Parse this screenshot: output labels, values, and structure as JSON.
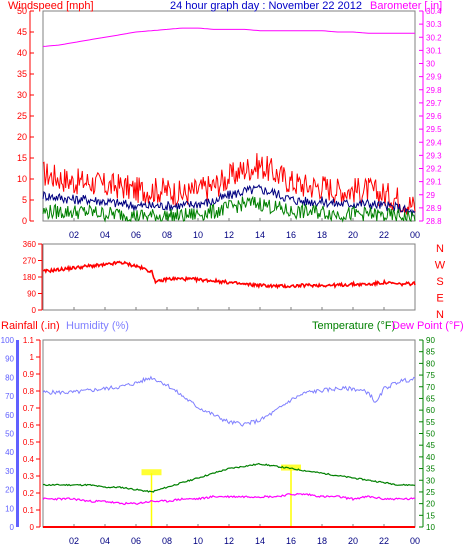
{
  "header": {
    "title": "24 hour graph day : November 22 2012",
    "windspeed_label": "Windspeed [mph]",
    "barometer_label": "Barometer [.in]",
    "rainfall_label": "Rainfall (.in)",
    "humidity_label": "Humidity (%)",
    "temperature_label": "Temperature (°F)",
    "dewpoint_label": "Dew Point (°F)"
  },
  "colors": {
    "wind": "#ff0000",
    "wind_avg": "#000080",
    "wind_low": "#008000",
    "barometer": "#ff00ff",
    "title": "#0000c8",
    "direction": "#ff0000",
    "rain": "#ff0000",
    "humidity": "#8080ff",
    "humidity_axis": "#6060ff",
    "temperature": "#008000",
    "dewpoint": "#ff00ff",
    "solar": "#ffff00"
  },
  "chart_data": [
    {
      "type": "line",
      "x_ticks": [
        "02",
        "04",
        "06",
        "08",
        "10",
        "12",
        "14",
        "16",
        "18",
        "20",
        "22",
        "00"
      ],
      "left_axis": {
        "ylim": [
          0,
          50
        ],
        "ticks": [
          0,
          5,
          10,
          15,
          20,
          25,
          30,
          35,
          40,
          45,
          50
        ]
      },
      "right_axis": {
        "ylim": [
          28.8,
          30.4
        ],
        "ticks": [
          "28.8",
          "28.9",
          "29",
          "29.1",
          "29.2",
          "29.3",
          "29.4",
          "29.5",
          "29.6",
          "29.7",
          "29.8",
          "29.9",
          "30",
          "30.1",
          "30.2",
          "30.3",
          "30.4"
        ]
      },
      "series": [
        {
          "name": "Windspeed [mph]",
          "axis": "left",
          "hours": [
            0,
            1,
            2,
            3,
            4,
            5,
            6,
            7,
            8,
            9,
            10,
            11,
            12,
            13,
            14,
            15,
            16,
            17,
            18,
            19,
            20,
            21,
            22,
            23,
            24
          ],
          "values": [
            11,
            10,
            9,
            9,
            8,
            8,
            7,
            7,
            7,
            6,
            7,
            8,
            10,
            12,
            13,
            11,
            9,
            8,
            8,
            7,
            7,
            7,
            6,
            5,
            3
          ]
        },
        {
          "name": "",
          "axis": "left",
          "hours": [
            0,
            1,
            2,
            3,
            4,
            5,
            6,
            7,
            8,
            9,
            10,
            11,
            12,
            13,
            14,
            15,
            16,
            17,
            18,
            19,
            20,
            21,
            22,
            23,
            24
          ],
          "values": [
            6,
            5.5,
            5,
            5,
            4.5,
            4,
            3.5,
            3.5,
            3.5,
            3.5,
            4,
            4.5,
            6,
            7,
            7.5,
            6.5,
            5,
            4.5,
            4.5,
            4,
            4,
            4,
            3.5,
            3,
            1.5
          ]
        },
        {
          "name": "",
          "axis": "left",
          "hours": [
            0,
            1,
            2,
            3,
            4,
            5,
            6,
            7,
            8,
            9,
            10,
            11,
            12,
            13,
            14,
            15,
            16,
            17,
            18,
            19,
            20,
            21,
            22,
            23,
            24
          ],
          "values": [
            2,
            2,
            2,
            2,
            1.5,
            1.5,
            1,
            1,
            1,
            1,
            1.5,
            2,
            3,
            4,
            4,
            3,
            2,
            2,
            2,
            1.5,
            1.5,
            1.5,
            1,
            1,
            0.5
          ]
        },
        {
          "name": "Barometer [.in]",
          "axis": "right",
          "hours": [
            0,
            1,
            2,
            3,
            4,
            5,
            6,
            7,
            8,
            9,
            10,
            11,
            12,
            13,
            14,
            15,
            16,
            17,
            18,
            19,
            20,
            21,
            22,
            23,
            24
          ],
          "values": [
            30.13,
            30.14,
            30.16,
            30.18,
            30.2,
            30.22,
            30.24,
            30.25,
            30.26,
            30.27,
            30.27,
            30.26,
            30.26,
            30.26,
            30.25,
            30.25,
            30.25,
            30.25,
            30.25,
            30.24,
            30.24,
            30.23,
            30.23,
            30.23,
            30.23
          ]
        }
      ]
    },
    {
      "type": "line",
      "x_ticks": [],
      "left_axis": {
        "ylim": [
          0,
          360
        ],
        "ticks": [
          0,
          90,
          180,
          270,
          360
        ]
      },
      "right_labels": [
        "N",
        "W",
        "S",
        "E",
        "N"
      ],
      "series": [
        {
          "name": "",
          "hours": [
            0,
            1,
            2,
            3,
            4,
            5,
            6,
            7,
            7.3,
            8,
            9,
            10,
            11,
            12,
            13,
            14,
            15,
            16,
            17,
            18,
            19,
            20,
            21,
            22,
            23,
            24
          ],
          "values": [
            210,
            220,
            230,
            240,
            245,
            260,
            240,
            210,
            150,
            170,
            170,
            165,
            160,
            150,
            140,
            135,
            130,
            130,
            135,
            135,
            135,
            140,
            140,
            150,
            140,
            145
          ]
        }
      ]
    },
    {
      "type": "line",
      "x_ticks": [
        "02",
        "04",
        "06",
        "08",
        "10",
        "12",
        "14",
        "16",
        "18",
        "20",
        "22",
        "00"
      ],
      "rain_axis": {
        "ylim": [
          0,
          1.1
        ],
        "ticks": [
          "0",
          "0.1",
          "0.2",
          "0.3",
          "0.4",
          "0.5",
          "0.6",
          "0.7",
          "0.8",
          "0.9",
          "1",
          "1.1"
        ]
      },
      "humidity_axis": {
        "ylim": [
          0,
          100
        ],
        "ticks": [
          0,
          10,
          20,
          30,
          40,
          50,
          60,
          70,
          80,
          90,
          100
        ]
      },
      "right_axis": {
        "ylim": [
          10,
          90
        ],
        "ticks": [
          10,
          15,
          20,
          25,
          30,
          35,
          40,
          45,
          50,
          55,
          60,
          65,
          70,
          75,
          80,
          85,
          90
        ]
      },
      "series": [
        {
          "name": "Rainfall (.in)",
          "axis": "rain",
          "hours": [
            0,
            24
          ],
          "values": [
            0,
            0
          ]
        },
        {
          "name": "Humidity (%)",
          "axis": "humidity",
          "hours": [
            0,
            1,
            2,
            3,
            4,
            5,
            6,
            7,
            8,
            9,
            10,
            11,
            12,
            13,
            14,
            15,
            16,
            17,
            18,
            19,
            20,
            21,
            21.5,
            22,
            23,
            24
          ],
          "values": [
            72,
            72,
            72,
            73,
            74,
            75,
            77,
            80,
            76,
            70,
            64,
            60,
            56,
            55,
            57,
            62,
            68,
            72,
            73,
            74,
            74,
            72,
            66,
            74,
            78,
            79
          ]
        },
        {
          "name": "Temperature (°F)",
          "axis": "right",
          "hours": [
            0,
            1,
            2,
            3,
            4,
            5,
            6,
            7,
            8,
            9,
            10,
            11,
            12,
            13,
            14,
            15,
            16,
            17,
            18,
            19,
            20,
            21,
            22,
            23,
            24
          ],
          "values": [
            28,
            28,
            28,
            28,
            27,
            27,
            26,
            25,
            27,
            29,
            31,
            33,
            35,
            36,
            37,
            36,
            35,
            34,
            33,
            32,
            31,
            30,
            29,
            28,
            28
          ]
        },
        {
          "name": "Dew Point (°F)",
          "axis": "right",
          "hours": [
            0,
            1,
            2,
            3,
            4,
            5,
            6,
            7,
            8,
            9,
            10,
            11,
            12,
            13,
            14,
            15,
            16,
            17,
            18,
            19,
            20,
            21,
            22,
            23,
            24
          ],
          "values": [
            22,
            22,
            22,
            21,
            21,
            20,
            20,
            21,
            21,
            22,
            22,
            23,
            23,
            23,
            23,
            23,
            24,
            24,
            23,
            23,
            22,
            23,
            22,
            22,
            22
          ]
        }
      ]
    }
  ]
}
